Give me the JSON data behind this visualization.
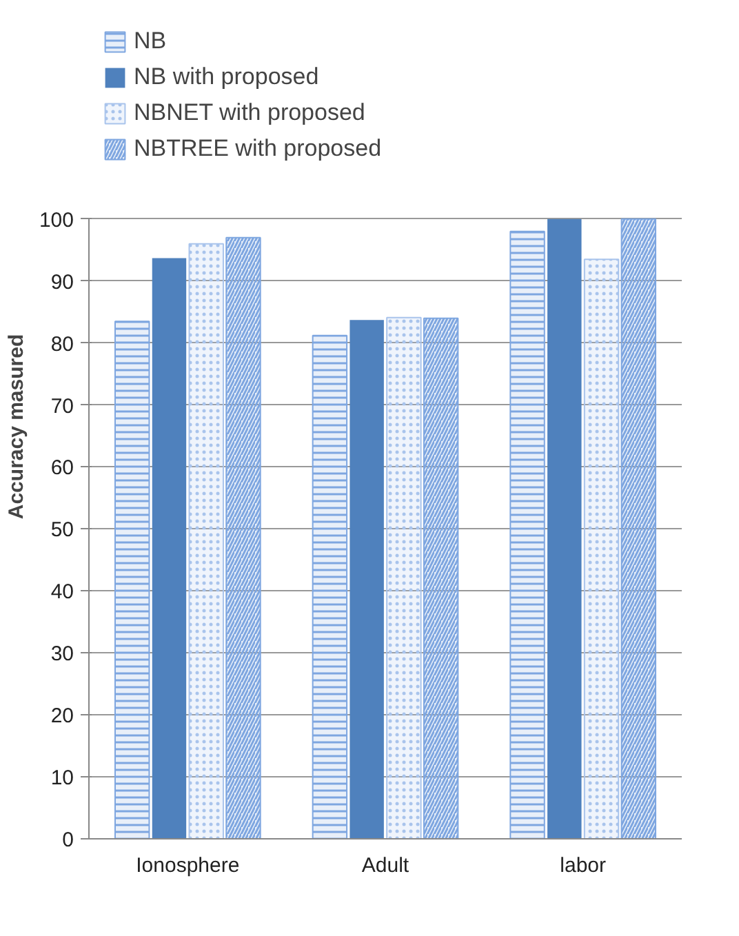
{
  "chart_data": {
    "type": "bar",
    "ylabel": "Accuracy masured",
    "categories": [
      "Ionosphere",
      "Adult",
      "labor"
    ],
    "series": [
      {
        "name": "NB",
        "color": "#7ea6e0",
        "values": [
          83.5,
          81.2,
          98
        ]
      },
      {
        "name": "NB with proposed",
        "color": "#4f81bd",
        "values": [
          93.7,
          83.7,
          100
        ]
      },
      {
        "name": "NBNET with proposed",
        "color": "#a9c4ec",
        "values": [
          96,
          84.1,
          93.5
        ]
      },
      {
        "name": "NBTREE with proposed",
        "color": "#7ea6e0",
        "values": [
          97,
          84,
          100
        ]
      }
    ],
    "ylim": [
      0,
      100
    ],
    "yticks": [
      0,
      10,
      20,
      30,
      40,
      50,
      60,
      70,
      80,
      90,
      100
    ],
    "grid": "y",
    "legend": "top"
  }
}
